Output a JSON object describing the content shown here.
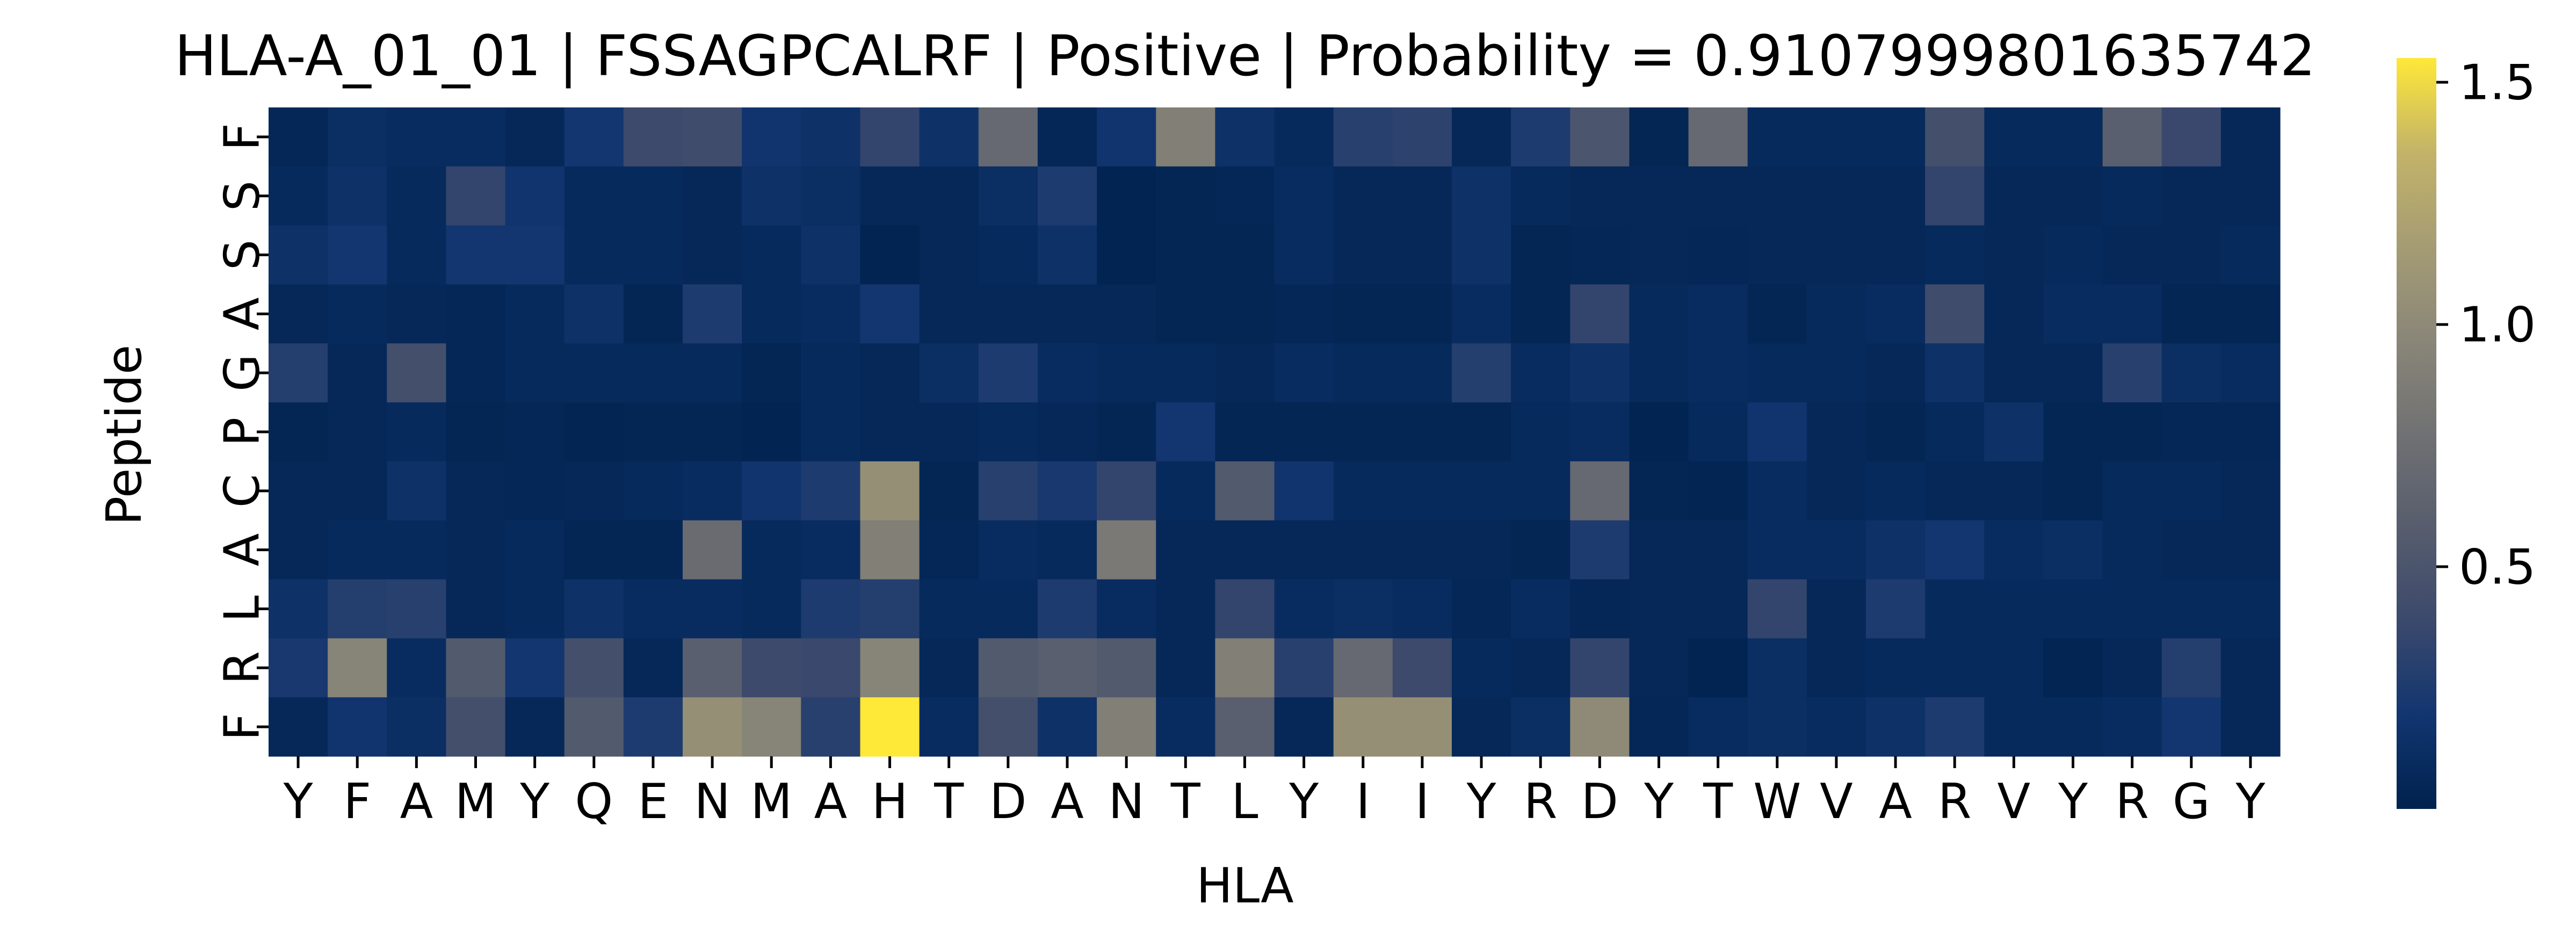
{
  "chart_data": {
    "type": "heatmap",
    "title": "HLA-A_01_01 | FSSAGPCALRF | Positive | Probability = 0.9107999801635742",
    "xlabel": "HLA",
    "ylabel": "Peptide",
    "x_categories": [
      "Y",
      "F",
      "A",
      "M",
      "Y",
      "Q",
      "E",
      "N",
      "M",
      "A",
      "H",
      "T",
      "D",
      "A",
      "N",
      "T",
      "L",
      "Y",
      "I",
      "I",
      "Y",
      "R",
      "D",
      "Y",
      "T",
      "W",
      "V",
      "A",
      "R",
      "V",
      "Y",
      "R",
      "G",
      "Y"
    ],
    "y_categories": [
      "F",
      "S",
      "S",
      "A",
      "G",
      "P",
      "C",
      "A",
      "L",
      "R",
      "F"
    ],
    "colormap": "cividis",
    "vmin": 0,
    "vmax": 1.55,
    "colorbar_ticks": [
      0.5,
      1.0,
      1.5
    ],
    "colorbar_tick_labels": [
      "0.5",
      "1.0",
      "1.5"
    ],
    "values": [
      [
        0.05,
        0.12,
        0.1,
        0.1,
        0.06,
        0.2,
        0.4,
        0.42,
        0.18,
        0.15,
        0.35,
        0.15,
        0.7,
        0.05,
        0.18,
        0.9,
        0.15,
        0.08,
        0.3,
        0.32,
        0.06,
        0.25,
        0.5,
        0.04,
        0.7,
        0.08,
        0.08,
        0.08,
        0.45,
        0.08,
        0.08,
        0.6,
        0.38,
        0.06
      ],
      [
        0.08,
        0.15,
        0.08,
        0.35,
        0.18,
        0.08,
        0.08,
        0.06,
        0.15,
        0.12,
        0.06,
        0.06,
        0.12,
        0.25,
        0.02,
        0.04,
        0.05,
        0.1,
        0.06,
        0.06,
        0.15,
        0.08,
        0.06,
        0.06,
        0.06,
        0.06,
        0.06,
        0.06,
        0.35,
        0.06,
        0.06,
        0.08,
        0.06,
        0.06
      ],
      [
        0.15,
        0.2,
        0.08,
        0.2,
        0.2,
        0.08,
        0.08,
        0.06,
        0.08,
        0.15,
        0.02,
        0.06,
        0.08,
        0.15,
        0.02,
        0.04,
        0.04,
        0.1,
        0.06,
        0.06,
        0.15,
        0.04,
        0.05,
        0.06,
        0.05,
        0.06,
        0.06,
        0.06,
        0.08,
        0.06,
        0.08,
        0.06,
        0.06,
        0.08
      ],
      [
        0.06,
        0.08,
        0.06,
        0.05,
        0.08,
        0.15,
        0.04,
        0.25,
        0.08,
        0.1,
        0.2,
        0.06,
        0.06,
        0.06,
        0.06,
        0.04,
        0.04,
        0.05,
        0.04,
        0.04,
        0.1,
        0.04,
        0.35,
        0.08,
        0.1,
        0.04,
        0.08,
        0.1,
        0.42,
        0.06,
        0.1,
        0.1,
        0.04,
        0.04
      ],
      [
        0.28,
        0.06,
        0.45,
        0.05,
        0.08,
        0.08,
        0.08,
        0.08,
        0.04,
        0.08,
        0.06,
        0.12,
        0.25,
        0.1,
        0.08,
        0.08,
        0.06,
        0.1,
        0.08,
        0.08,
        0.28,
        0.1,
        0.15,
        0.08,
        0.1,
        0.08,
        0.08,
        0.06,
        0.15,
        0.06,
        0.06,
        0.3,
        0.12,
        0.1
      ],
      [
        0.04,
        0.06,
        0.08,
        0.04,
        0.05,
        0.03,
        0.04,
        0.04,
        0.02,
        0.08,
        0.06,
        0.06,
        0.08,
        0.06,
        0.04,
        0.2,
        0.04,
        0.04,
        0.04,
        0.04,
        0.04,
        0.08,
        0.1,
        0.02,
        0.08,
        0.18,
        0.06,
        0.04,
        0.08,
        0.15,
        0.04,
        0.04,
        0.05,
        0.05
      ],
      [
        0.06,
        0.06,
        0.15,
        0.06,
        0.05,
        0.06,
        0.08,
        0.1,
        0.18,
        0.25,
        1.05,
        0.04,
        0.3,
        0.22,
        0.35,
        0.08,
        0.55,
        0.18,
        0.08,
        0.08,
        0.08,
        0.08,
        0.7,
        0.04,
        0.03,
        0.1,
        0.06,
        0.08,
        0.06,
        0.06,
        0.04,
        0.08,
        0.08,
        0.06
      ],
      [
        0.06,
        0.08,
        0.08,
        0.06,
        0.08,
        0.04,
        0.04,
        0.72,
        0.08,
        0.1,
        0.9,
        0.05,
        0.1,
        0.08,
        0.85,
        0.06,
        0.06,
        0.06,
        0.06,
        0.06,
        0.06,
        0.04,
        0.25,
        0.06,
        0.06,
        0.1,
        0.1,
        0.15,
        0.2,
        0.1,
        0.12,
        0.08,
        0.06,
        0.06
      ],
      [
        0.15,
        0.28,
        0.3,
        0.06,
        0.08,
        0.15,
        0.1,
        0.1,
        0.08,
        0.25,
        0.28,
        0.08,
        0.08,
        0.25,
        0.1,
        0.06,
        0.35,
        0.1,
        0.12,
        0.1,
        0.05,
        0.1,
        0.05,
        0.06,
        0.06,
        0.35,
        0.06,
        0.25,
        0.08,
        0.08,
        0.08,
        0.08,
        0.08,
        0.08
      ],
      [
        0.22,
        0.95,
        0.1,
        0.55,
        0.2,
        0.45,
        0.06,
        0.6,
        0.4,
        0.38,
        0.95,
        0.06,
        0.55,
        0.6,
        0.55,
        0.06,
        0.9,
        0.3,
        0.7,
        0.4,
        0.08,
        0.06,
        0.35,
        0.06,
        0.02,
        0.12,
        0.06,
        0.08,
        0.08,
        0.08,
        0.03,
        0.06,
        0.28,
        0.06
      ],
      [
        0.06,
        0.18,
        0.12,
        0.45,
        0.06,
        0.55,
        0.25,
        1.05,
        0.95,
        0.3,
        1.55,
        0.1,
        0.45,
        0.15,
        0.9,
        0.1,
        0.6,
        0.06,
        1.05,
        1.05,
        0.06,
        0.12,
        1.0,
        0.05,
        0.1,
        0.12,
        0.1,
        0.15,
        0.25,
        0.08,
        0.08,
        0.1,
        0.2,
        0.06
      ]
    ]
  }
}
